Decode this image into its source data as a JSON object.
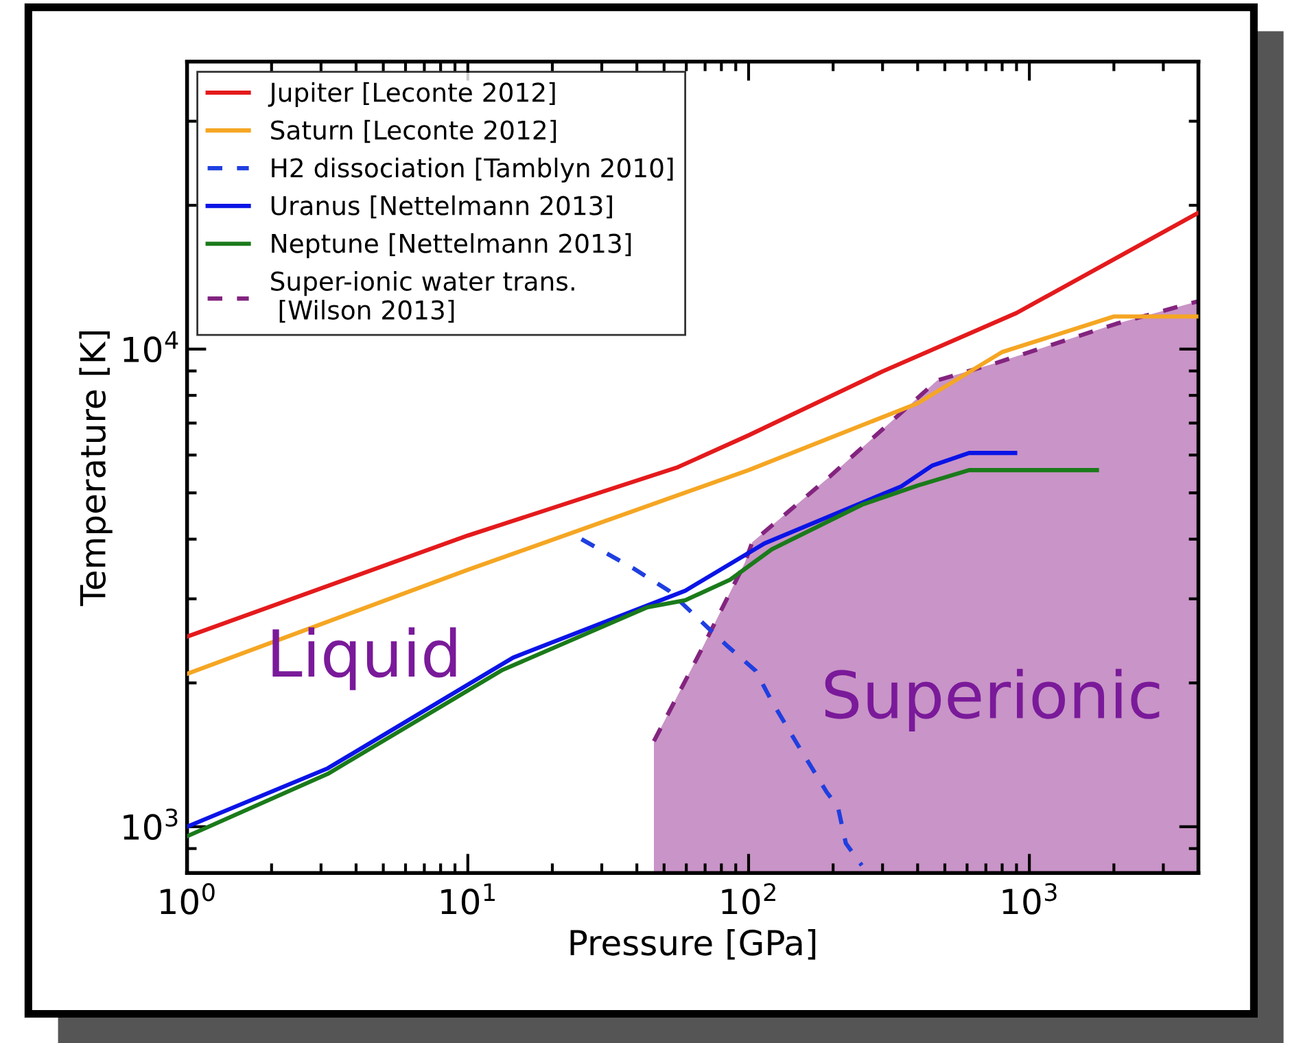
{
  "chart_data": {
    "type": "line",
    "xlabel": "Pressure [GPa]",
    "ylabel": "Temperature [K]",
    "log": "xy",
    "xlim": [
      1,
      4000
    ],
    "ylim": [
      800,
      40000
    ],
    "xticks": [
      {
        "value": 1,
        "label": "10$^{0}$"
      },
      {
        "value": 10,
        "label": "10$^{1}$"
      },
      {
        "value": 100,
        "label": "10$^{2}$"
      },
      {
        "value": 1000,
        "label": "10$^{3}$"
      }
    ],
    "yticks": [
      {
        "value": 1000,
        "label": "10$^{3}$"
      },
      {
        "value": 10000,
        "label": "10$^{4}$"
      }
    ],
    "grid": false,
    "legend": "top left",
    "marker": "none",
    "series": [
      {
        "name": "Jupiter [Leconte 2012]",
        "color": "#e41a1c",
        "line_style": "solid",
        "x": [
          1,
          10,
          56,
          100,
          300,
          900,
          4000
        ],
        "values": [
          2500,
          4070,
          5660,
          6600,
          8980,
          11900,
          19300
        ]
      },
      {
        "name": "Saturn [Leconte 2012]",
        "color": "#f5a623",
        "line_style": "solid",
        "x": [
          1,
          10,
          100,
          400,
          800,
          2000,
          4000
        ],
        "values": [
          2090,
          3450,
          5580,
          7700,
          9860,
          11700,
          11700
        ]
      },
      {
        "name": "H2 dissociation [Tamblyn 2010]",
        "color": "#1f3fe0",
        "line_style": "dashed",
        "x": [
          25.4,
          39,
          52,
          66,
          84,
          106,
          121,
          149,
          190,
          208,
          222,
          253
        ],
        "values": [
          4000,
          3470,
          3120,
          2730,
          2390,
          2120,
          1830,
          1490,
          1180,
          1100,
          923,
          830
        ]
      },
      {
        "name": "Uranus [Nettelmann 2013]",
        "color": "#0a14e6",
        "line_style": "solid",
        "x": [
          1,
          3.17,
          14.5,
          59.5,
          114,
          350,
          450,
          610,
          890
        ],
        "values": [
          1000,
          1325,
          2260,
          3120,
          3920,
          5160,
          5700,
          6060,
          6060
        ]
      },
      {
        "name": "Neptune [Nettelmann 2013]",
        "color": "#1a7a1a",
        "line_style": "solid",
        "x": [
          1,
          3.17,
          13.3,
          43.6,
          59.5,
          86,
          121,
          253,
          400,
          610,
          1740
        ],
        "values": [
          955,
          1290,
          2130,
          2880,
          2980,
          3290,
          3810,
          4720,
          5180,
          5580,
          5580
        ]
      },
      {
        "type": "area",
        "name": "Super-ionic water trans.\n [Wilson 2013]",
        "color": "#c994c7",
        "line_style": "dashed",
        "x": [
          46,
          69,
          97,
          103,
          121,
          194,
          470,
          760,
          2040,
          4000
        ],
        "values": [
          1510,
          2390,
          3570,
          3940,
          4270,
          5400,
          8600,
          9350,
          11300,
          12600
        ]
      }
    ],
    "annotations": [
      "Liquid",
      "Superionic"
    ]
  }
}
